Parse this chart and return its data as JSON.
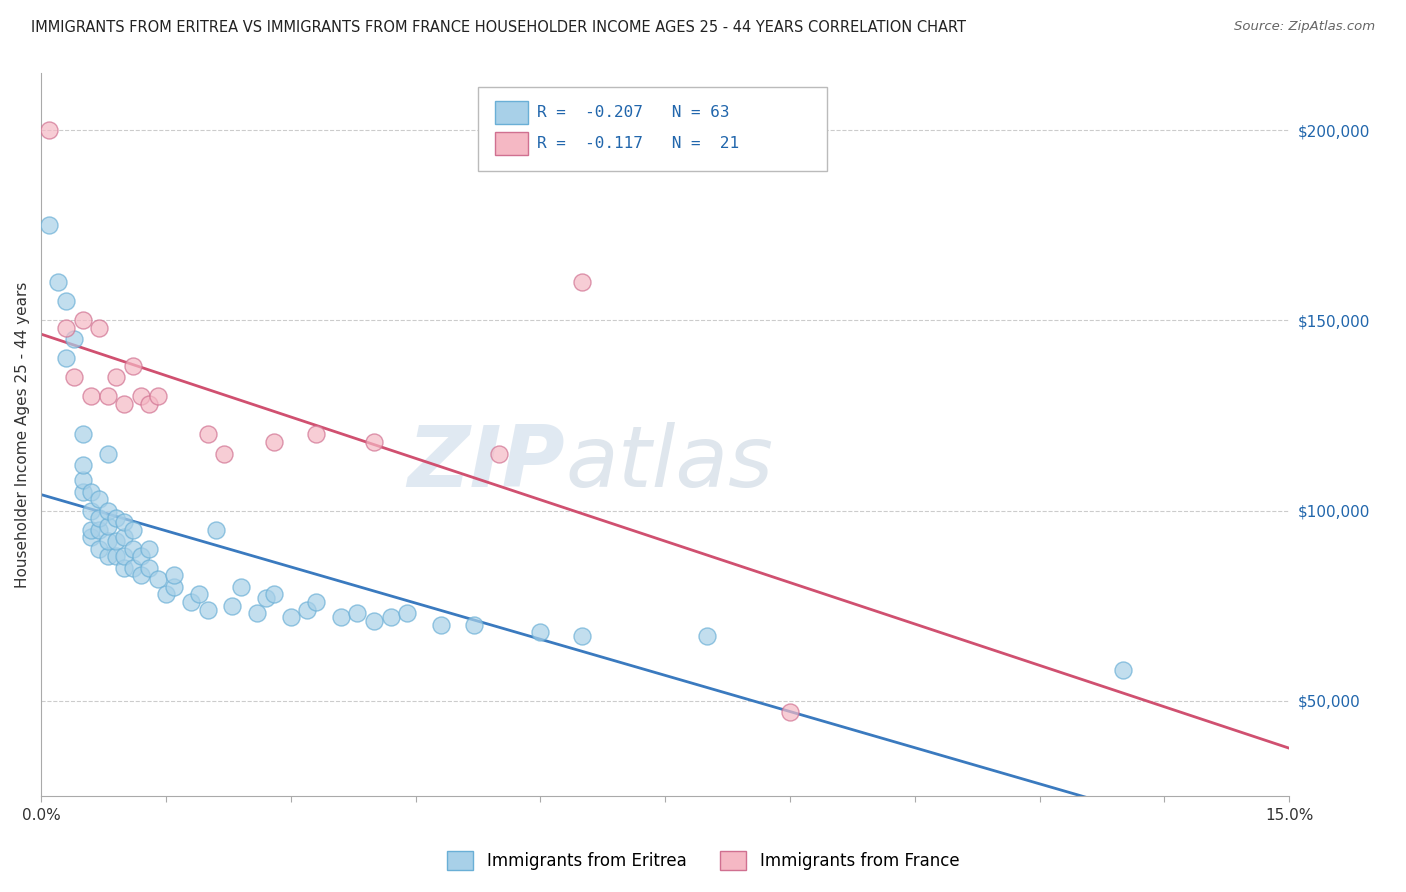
{
  "title": "IMMIGRANTS FROM ERITREA VS IMMIGRANTS FROM FRANCE HOUSEHOLDER INCOME AGES 25 - 44 YEARS CORRELATION CHART",
  "source": "Source: ZipAtlas.com",
  "ylabel": "Householder Income Ages 25 - 44 years",
  "xlim": [
    0.0,
    0.15
  ],
  "ylim": [
    25000,
    215000
  ],
  "yticks": [
    50000,
    100000,
    150000,
    200000
  ],
  "ytick_labels": [
    "$50,000",
    "$100,000",
    "$150,000",
    "$200,000"
  ],
  "xticks": [
    0.0,
    0.015,
    0.03,
    0.045,
    0.06,
    0.075,
    0.09,
    0.105,
    0.12,
    0.135,
    0.15
  ],
  "xtick_labels": [
    "0.0%",
    "",
    "",
    "",
    "",
    "",
    "",
    "",
    "",
    "",
    "15.0%"
  ],
  "background_color": "#ffffff",
  "grid_color": "#cccccc",
  "watermark_zip": "ZIP",
  "watermark_atlas": "atlas",
  "series": [
    {
      "name": "Immigrants from Eritrea",
      "color": "#a8d0e8",
      "edge_color": "#6aafd6",
      "R": -0.207,
      "N": 63,
      "line_color": "#3a7abf",
      "x": [
        0.001,
        0.002,
        0.003,
        0.003,
        0.004,
        0.005,
        0.005,
        0.005,
        0.005,
        0.006,
        0.006,
        0.006,
        0.006,
        0.007,
        0.007,
        0.007,
        0.007,
        0.008,
        0.008,
        0.008,
        0.008,
        0.008,
        0.009,
        0.009,
        0.009,
        0.01,
        0.01,
        0.01,
        0.01,
        0.011,
        0.011,
        0.011,
        0.012,
        0.012,
        0.013,
        0.013,
        0.014,
        0.015,
        0.016,
        0.016,
        0.018,
        0.019,
        0.02,
        0.021,
        0.023,
        0.024,
        0.026,
        0.027,
        0.028,
        0.03,
        0.032,
        0.033,
        0.036,
        0.038,
        0.04,
        0.042,
        0.044,
        0.048,
        0.052,
        0.06,
        0.065,
        0.08,
        0.13
      ],
      "y": [
        175000,
        160000,
        155000,
        140000,
        145000,
        105000,
        108000,
        112000,
        120000,
        93000,
        95000,
        100000,
        105000,
        90000,
        95000,
        98000,
        103000,
        88000,
        92000,
        96000,
        100000,
        115000,
        88000,
        92000,
        98000,
        85000,
        88000,
        93000,
        97000,
        85000,
        90000,
        95000,
        83000,
        88000,
        85000,
        90000,
        82000,
        78000,
        80000,
        83000,
        76000,
        78000,
        74000,
        95000,
        75000,
        80000,
        73000,
        77000,
        78000,
        72000,
        74000,
        76000,
        72000,
        73000,
        71000,
        72000,
        73000,
        70000,
        70000,
        68000,
        67000,
        67000,
        58000
      ]
    },
    {
      "name": "Immigrants from France",
      "color": "#f5b8c4",
      "edge_color": "#d07090",
      "R": -0.117,
      "N": 21,
      "line_color": "#d05070",
      "x": [
        0.001,
        0.003,
        0.004,
        0.005,
        0.006,
        0.007,
        0.008,
        0.009,
        0.01,
        0.011,
        0.012,
        0.013,
        0.014,
        0.02,
        0.022,
        0.028,
        0.033,
        0.04,
        0.055,
        0.065,
        0.09
      ],
      "y": [
        200000,
        148000,
        135000,
        150000,
        130000,
        148000,
        130000,
        135000,
        128000,
        138000,
        130000,
        128000,
        130000,
        120000,
        115000,
        118000,
        120000,
        118000,
        115000,
        160000,
        47000
      ]
    }
  ]
}
